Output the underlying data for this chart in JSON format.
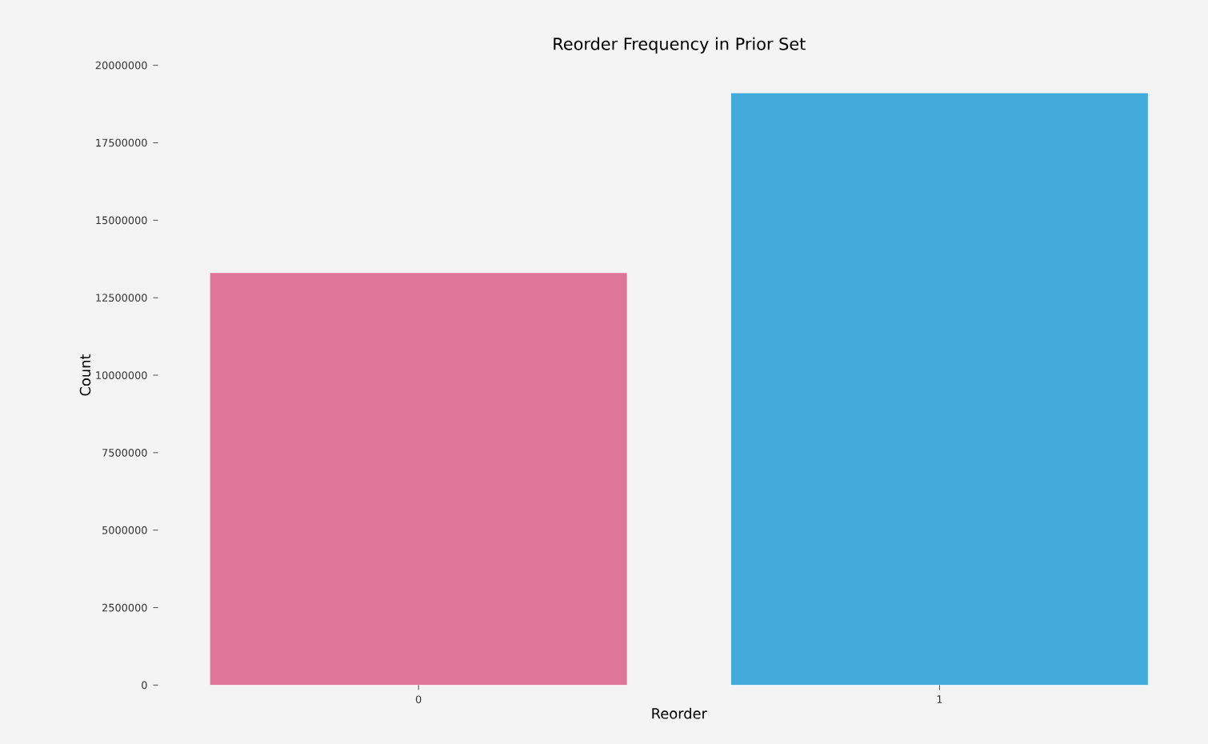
{
  "chart_data": {
    "type": "bar",
    "title": "Reorder Frequency in Prior Set",
    "xlabel": "Reorder",
    "ylabel": "Count",
    "categories": [
      "0",
      "1"
    ],
    "values": [
      13300000,
      19100000
    ],
    "colors": [
      "#df7598",
      "#43abdc"
    ],
    "ylim": [
      0,
      20000000
    ],
    "yticks": [
      0,
      2500000,
      5000000,
      7500000,
      10000000,
      12500000,
      15000000,
      17500000,
      20000000
    ]
  }
}
